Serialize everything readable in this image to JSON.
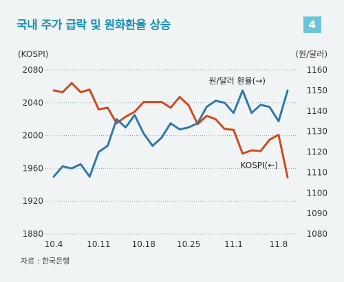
{
  "chart_data": {
    "type": "line",
    "title": "국내 주가 급락 및 원화환율 상승",
    "badge": "4",
    "source": "자료 : 한국은행",
    "left_axis": {
      "unit": "(KOSPI)",
      "ylim": [
        1880,
        2080
      ],
      "ticks": [
        "1880",
        "1920",
        "1960",
        "2000",
        "2040",
        "2080"
      ]
    },
    "right_axis": {
      "unit": "(원/달러)",
      "ylim": [
        1080,
        1160
      ],
      "ticks": [
        "1080",
        "1090",
        "1100",
        "1110",
        "1120",
        "1130",
        "1140",
        "1150",
        "1160"
      ]
    },
    "x_ticks": [
      "10.4",
      "10.11",
      "10.18",
      "10.25",
      "11.1",
      "11.8"
    ],
    "series": [
      {
        "name": "KOSPI(←)",
        "axis": "left",
        "color": "#cc4a1c",
        "values": [
          2055,
          2053,
          2064,
          2053,
          2056,
          2032,
          2034,
          2015,
          2023,
          2029,
          2041,
          2041,
          2041,
          2034,
          2047,
          2037,
          2014,
          2024,
          2020,
          2008,
          2007,
          1978,
          1982,
          1981,
          1995,
          2001,
          1949
        ]
      },
      {
        "name": "원/달러 환율(→)",
        "axis": "right",
        "color": "#2d78a8",
        "values": [
          1108,
          1113,
          1112,
          1114,
          1108,
          1120,
          1123,
          1136,
          1132,
          1138,
          1129,
          1123,
          1127,
          1134,
          1131,
          1132,
          1134,
          1142,
          1145,
          1144,
          1139,
          1150,
          1139,
          1143,
          1142,
          1135,
          1150
        ]
      }
    ]
  }
}
